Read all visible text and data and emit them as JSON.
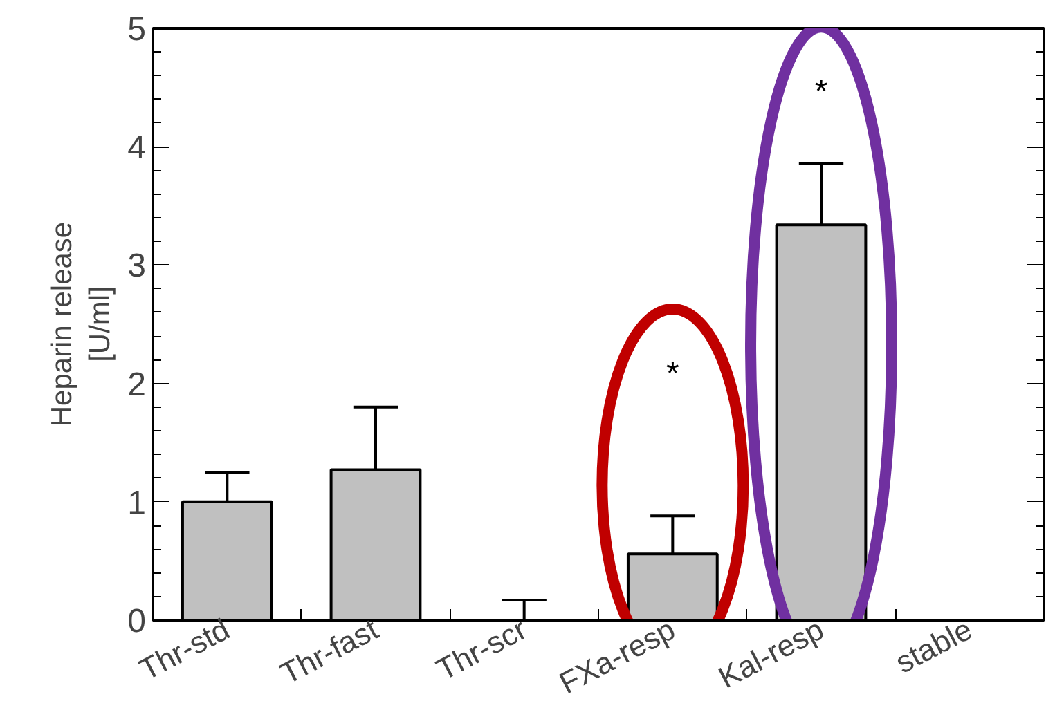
{
  "chart_data": {
    "type": "bar",
    "ylabel": "Heparin release\n[U/ml]",
    "categories": [
      "Thr-std",
      "Thr-fast",
      "Thr-scr",
      "FXa-resp",
      "Kal-resp",
      "stable"
    ],
    "values": [
      1.0,
      1.27,
      0,
      0.56,
      3.34,
      null
    ],
    "errors": [
      0.25,
      0.53,
      0.17,
      0.32,
      0.52,
      null
    ],
    "color": "#c0c0c0",
    "ylim": [
      0,
      5
    ],
    "yticks": [
      0,
      1,
      2,
      3,
      4,
      5
    ],
    "grid": false,
    "annotations": [
      "*",
      "*"
    ]
  }
}
